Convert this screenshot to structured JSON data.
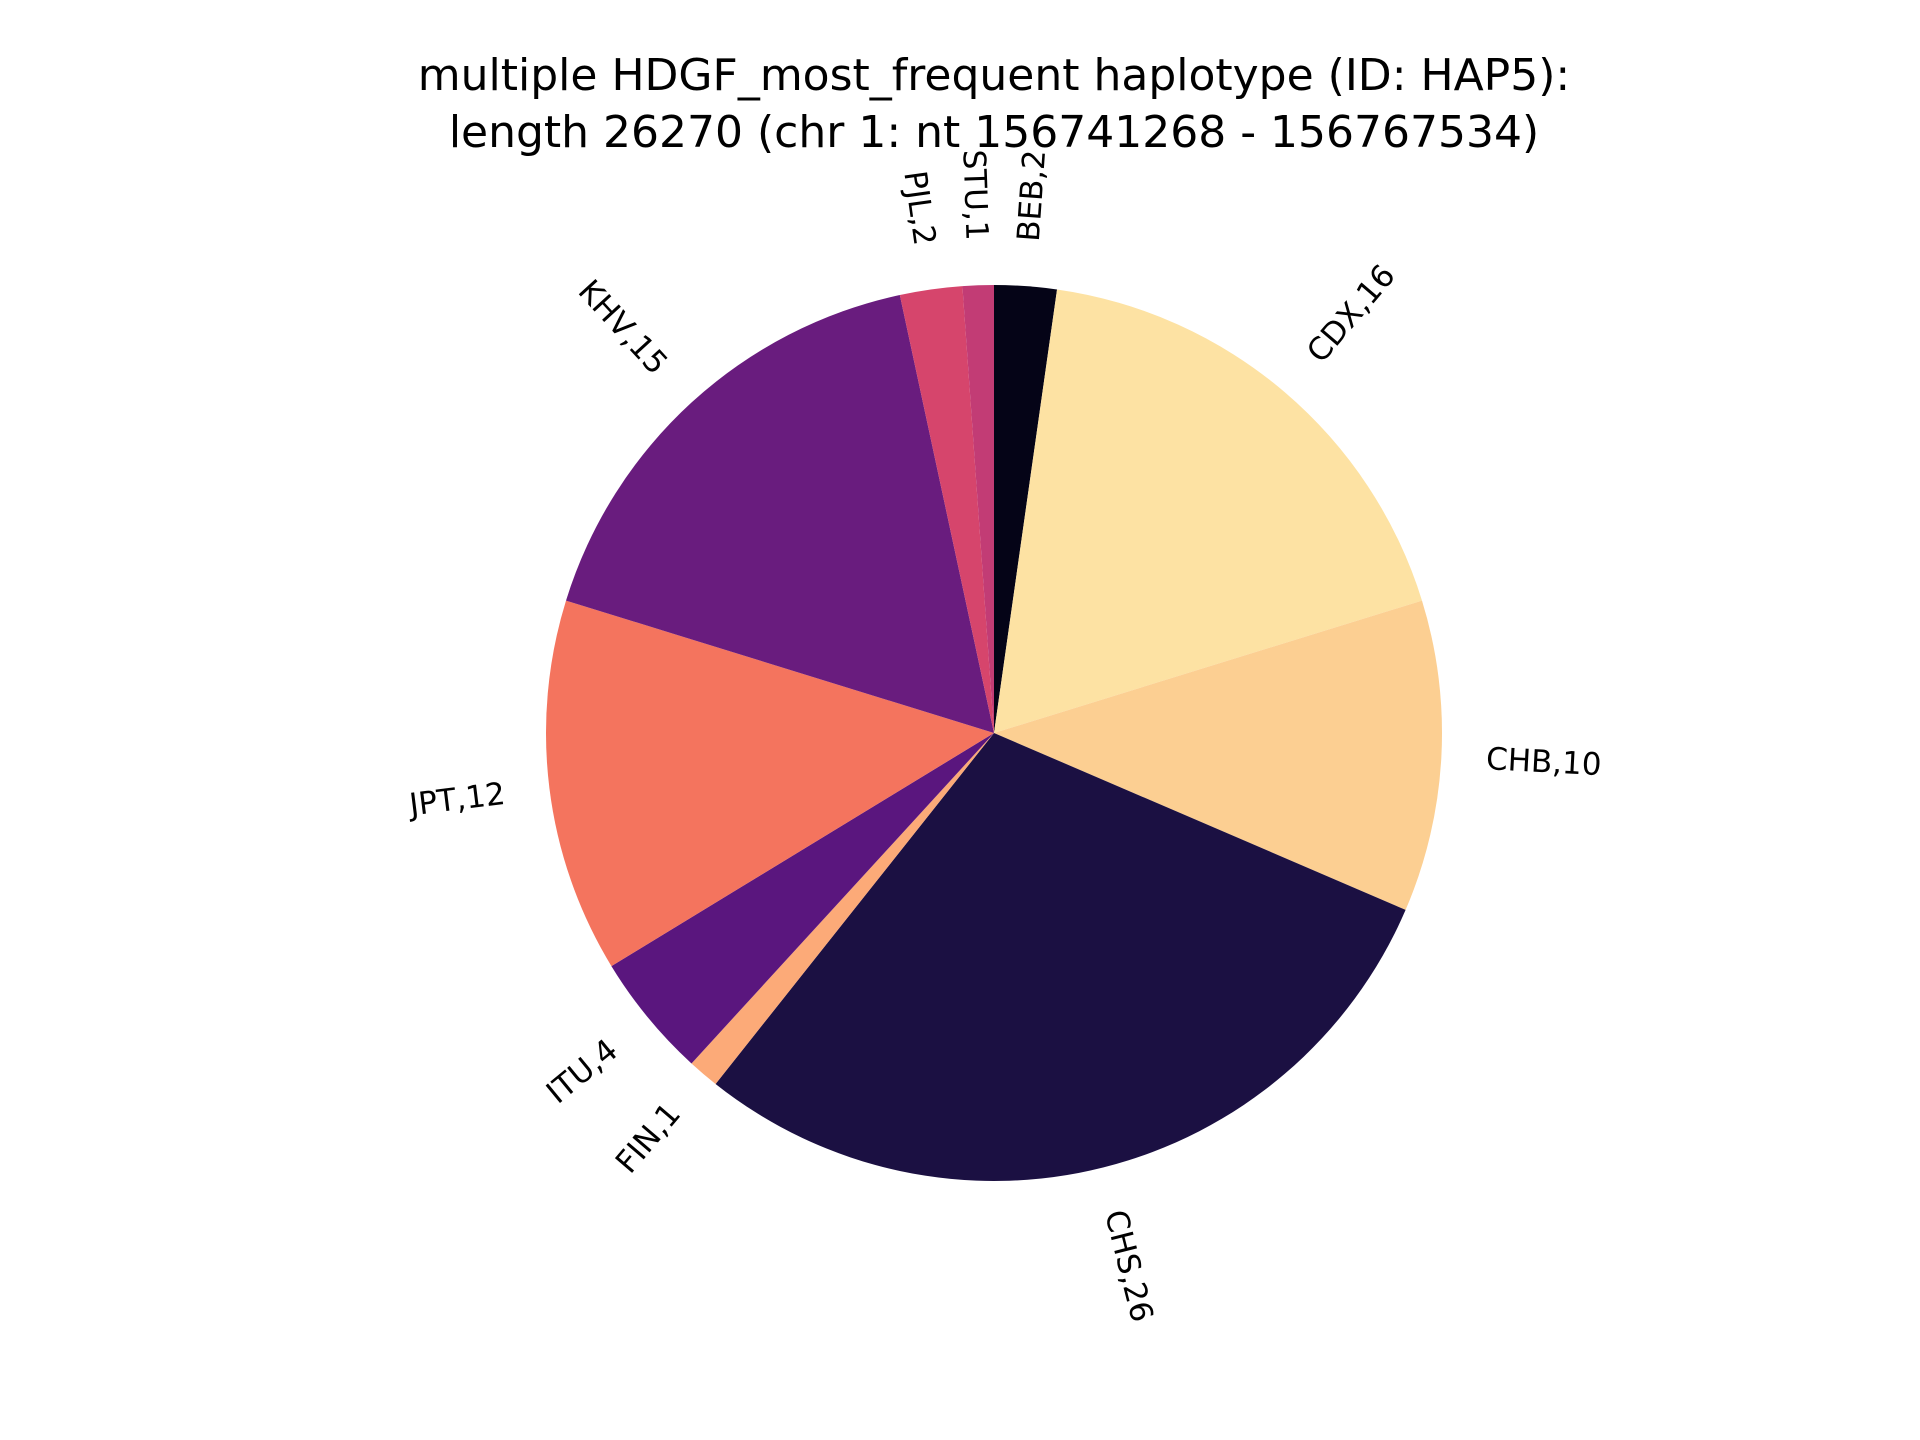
{
  "chart_data": {
    "type": "pie",
    "title_lines": [
      "multiple HDGF_most_frequent haplotype (ID: HAP5):",
      "length 26270 (chr 1: nt 156741268 - 156767534)"
    ],
    "start_angle_deg": 90,
    "direction": "clockwise",
    "slices": [
      {
        "label": "BEB,2",
        "value": 2,
        "color": "#050417"
      },
      {
        "label": "CDX,16",
        "value": 16,
        "color": "#FDE2A3"
      },
      {
        "label": "CHB,10",
        "value": 10,
        "color": "#FCCF92"
      },
      {
        "label": "CHS,26",
        "value": 26,
        "color": "#1B1042"
      },
      {
        "label": "FIN,1",
        "value": 1,
        "color": "#FCAA78"
      },
      {
        "label": "ITU,4",
        "value": 4,
        "color": "#5A167E"
      },
      {
        "label": "JPT,12",
        "value": 12,
        "color": "#F4745E"
      },
      {
        "label": "KHV,15",
        "value": 15,
        "color": "#691C7E"
      },
      {
        "label": "PJL,2",
        "value": 2,
        "color": "#D6456C"
      },
      {
        "label": "STU,1",
        "value": 1,
        "color": "#C23C75"
      }
    ]
  }
}
